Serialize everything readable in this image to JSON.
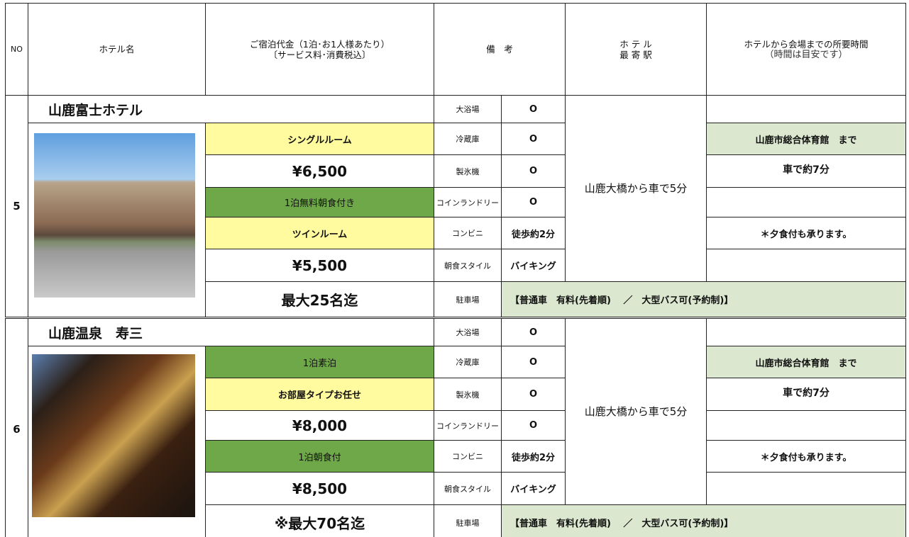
{
  "header": {
    "no": "NO",
    "hotel_name": "ホテル名",
    "price": [
      "ご宿泊代金（1泊･お1人様あたり）",
      "〔サービス料･消費税込〕"
    ],
    "remarks": "備　考",
    "station": [
      "ホ テ ル",
      "最 寄 駅"
    ],
    "time": [
      "ホテルから会場までの所要時間",
      "（時間は目安です）"
    ]
  },
  "hotels": [
    {
      "no": "5",
      "name": "山鹿富士ホテル",
      "prices": [
        "シングルルーム",
        "¥6,500",
        "1泊無料朝食付き",
        "ツインルーム",
        "¥5,500",
        "最大25名迄"
      ],
      "remarks": [
        [
          "大浴場",
          "O"
        ],
        [
          "冷蔵庫",
          "O"
        ],
        [
          "製氷機",
          "O"
        ],
        [
          "コインランドリー",
          "O"
        ],
        [
          "コンビニ",
          "徒歩約2分"
        ],
        [
          "朝食スタイル",
          "バイキング"
        ],
        [
          "駐車場",
          "【普通車　有料(先着順)　 ／　大型バス可(予約制)】"
        ]
      ],
      "station": "山鹿大橋から車で5分",
      "time": [
        "山鹿市総合体育館　まで",
        "車で約7分",
        "＊夕食付も承ります。"
      ]
    },
    {
      "no": "6",
      "name": "山鹿温泉　寿三",
      "prices": [
        "1泊素泊",
        "お部屋タイプお任せ",
        "¥8,000",
        "1泊朝食付",
        "¥8,500",
        "※最大70名迄"
      ],
      "remarks": [
        [
          "大浴場",
          "O"
        ],
        [
          "冷蔵庫",
          "O"
        ],
        [
          "製氷機",
          "O"
        ],
        [
          "コインランドリー",
          "O"
        ],
        [
          "コンビニ",
          "徒歩約2分"
        ],
        [
          "朝食スタイル",
          "バイキング"
        ],
        [
          "駐車場",
          "【普通車　有料(先着順)　 ／　大型バス可(予約制)】"
        ]
      ],
      "station": "山鹿大橋から車で5分",
      "time": [
        "山鹿市総合体育館　まで",
        "車で約7分",
        "＊夕食付も承ります。"
      ]
    }
  ]
}
